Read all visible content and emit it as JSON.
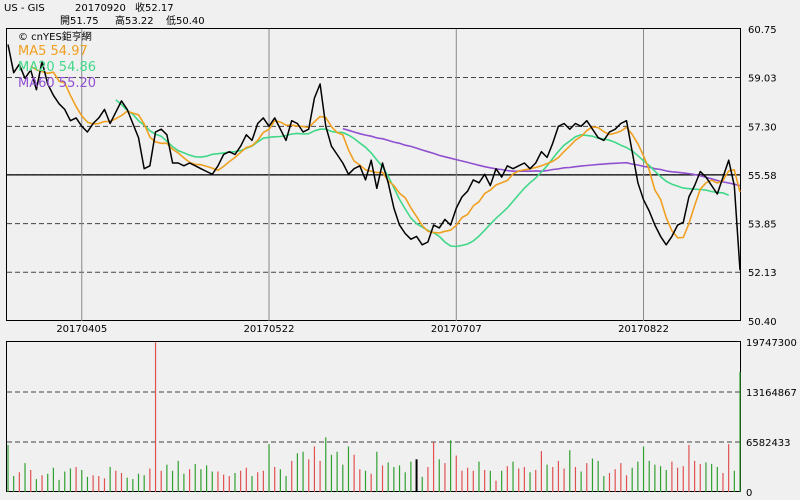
{
  "header": {
    "symbol": "US - GIS",
    "date": "20170920",
    "close_label": "收52.17",
    "open_label": "開51.75",
    "high_label": "高53.22",
    "low_label": "低50.40"
  },
  "watermark": "© cnYES鉅亨網",
  "chart_data": {
    "type": "line",
    "price": {
      "ylim": [
        50.4,
        60.75
      ],
      "yticks": [
        "60.75",
        "59.03",
        "57.30",
        "55.58",
        "53.85",
        "52.13",
        "50.40"
      ],
      "reference_line": 55.58,
      "xticks": [
        {
          "label": "20170405",
          "index": 13
        },
        {
          "label": "20170522",
          "index": 46
        },
        {
          "label": "20170707",
          "index": 79
        },
        {
          "label": "20170822",
          "index": 112
        }
      ],
      "close": [
        60.2,
        59.2,
        59.5,
        59.0,
        59.3,
        58.6,
        59.6,
        58.8,
        58.4,
        58.1,
        57.9,
        57.5,
        57.6,
        57.3,
        57.1,
        57.4,
        57.6,
        57.9,
        57.4,
        57.8,
        58.2,
        57.9,
        57.4,
        56.9,
        55.8,
        55.9,
        57.1,
        57.2,
        57.0,
        56.0,
        56.0,
        55.9,
        56.0,
        55.9,
        55.8,
        55.7,
        55.6,
        55.9,
        56.3,
        56.4,
        56.3,
        56.6,
        57.0,
        56.8,
        57.4,
        57.6,
        57.3,
        57.6,
        57.2,
        56.8,
        57.5,
        57.4,
        57.1,
        57.2,
        58.3,
        58.8,
        57.3,
        56.6,
        56.3,
        56.0,
        55.6,
        55.8,
        55.9,
        55.4,
        56.1,
        55.1,
        56.0,
        55.3,
        54.4,
        53.8,
        53.5,
        53.3,
        53.4,
        53.1,
        53.2,
        53.8,
        53.7,
        54.0,
        53.8,
        54.4,
        54.8,
        55.0,
        55.4,
        55.3,
        55.6,
        55.2,
        55.8,
        55.5,
        55.9,
        55.8,
        55.9,
        56.0,
        55.8,
        56.0,
        56.4,
        56.2,
        56.7,
        57.3,
        57.4,
        57.2,
        57.4,
        57.3,
        57.5,
        57.2,
        56.9,
        56.8,
        57.1,
        57.2,
        57.4,
        57.5,
        56.4,
        55.3,
        54.7,
        54.3,
        53.8,
        53.4,
        53.1,
        53.4,
        53.8,
        53.9,
        54.8,
        55.2,
        55.7,
        55.5,
        55.2,
        54.9,
        55.5,
        56.1,
        55.2,
        52.2
      ],
      "ma": [
        {
          "name": "MA5",
          "value_label": "54.97",
          "color": "#f0a020",
          "series": [
            null,
            null,
            null,
            null,
            59.44,
            59.3,
            59.24,
            59.18,
            59.22,
            58.9,
            58.84,
            58.4,
            58.0,
            57.67,
            57.45,
            57.38,
            57.4,
            57.47,
            57.47,
            57.57,
            57.68,
            57.84,
            57.77,
            57.71,
            57.38,
            56.92,
            56.75,
            56.7,
            56.7,
            56.49,
            56.36,
            56.18,
            56.02,
            55.95,
            55.94,
            55.88,
            55.82,
            55.74,
            55.88,
            56.05,
            56.2,
            56.38,
            56.55,
            56.61,
            56.8,
            57.08,
            57.19,
            57.5,
            57.45,
            57.34,
            57.34,
            57.31,
            57.29,
            57.26,
            57.46,
            57.65,
            57.61,
            57.29,
            57.08,
            57.0,
            56.46,
            56.07,
            55.93,
            55.76,
            55.71,
            55.66,
            55.67,
            55.37,
            55.2,
            54.93,
            54.77,
            54.41,
            54.1,
            53.78,
            53.58,
            53.54,
            53.52,
            53.58,
            53.62,
            53.79,
            54.07,
            54.18,
            54.48,
            54.63,
            54.92,
            55.04,
            55.22,
            55.3,
            55.38,
            55.61,
            55.72,
            55.76,
            55.79,
            55.84,
            55.9,
            55.98,
            56.06,
            56.19,
            56.41,
            56.6,
            56.81,
            56.94,
            57.15,
            57.28,
            57.26,
            57.11,
            57.01,
            57.06,
            57.13,
            57.27,
            57.01,
            56.68,
            56.26,
            55.75,
            55.04,
            54.71,
            54.06,
            53.6,
            53.35,
            53.36,
            53.85,
            54.49,
            55.07,
            55.3,
            55.39,
            55.29,
            55.38,
            55.72,
            55.76,
            54.97
          ]
        },
        {
          "name": "MA20",
          "value_label": "54.86",
          "color": "#40d888",
          "series": [
            null,
            null,
            null,
            null,
            null,
            null,
            null,
            null,
            null,
            null,
            null,
            null,
            null,
            null,
            null,
            null,
            null,
            null,
            null,
            58.24,
            58.07,
            57.87,
            57.73,
            57.5,
            57.34,
            57.14,
            57.02,
            56.95,
            56.77,
            56.58,
            56.44,
            56.36,
            56.28,
            56.22,
            56.21,
            56.24,
            56.31,
            56.33,
            56.36,
            56.39,
            56.4,
            56.44,
            56.52,
            56.6,
            56.75,
            56.88,
            56.91,
            56.93,
            56.94,
            56.97,
            57.03,
            57.05,
            57.03,
            57.04,
            57.14,
            57.2,
            57.2,
            57.12,
            57.09,
            57.08,
            56.99,
            56.87,
            56.71,
            56.56,
            56.36,
            56.11,
            55.87,
            55.53,
            55.12,
            54.71,
            54.37,
            54.05,
            53.85,
            53.73,
            53.61,
            53.53,
            53.4,
            53.2,
            53.06,
            53.04,
            53.08,
            53.13,
            53.24,
            53.41,
            53.62,
            53.83,
            54.04,
            54.22,
            54.41,
            54.64,
            54.88,
            55.11,
            55.3,
            55.47,
            55.68,
            55.9,
            56.16,
            56.41,
            56.63,
            56.78,
            56.93,
            57.0,
            56.98,
            56.95,
            56.88,
            56.85,
            56.81,
            56.73,
            56.63,
            56.55,
            56.43,
            56.26,
            56.08,
            55.91,
            55.71,
            55.52,
            55.35,
            55.25,
            55.18,
            55.11,
            55.09,
            55.07,
            55.06,
            55.04,
            54.99,
            54.96,
            54.94,
            54.86
          ]
        },
        {
          "name": "MA60",
          "value_label": "55.20",
          "color": "#9050d0",
          "series": [
            null,
            null,
            null,
            null,
            null,
            null,
            null,
            null,
            null,
            null,
            null,
            null,
            null,
            null,
            null,
            null,
            null,
            null,
            null,
            null,
            null,
            null,
            null,
            null,
            null,
            null,
            null,
            null,
            null,
            null,
            null,
            null,
            null,
            null,
            null,
            null,
            null,
            null,
            null,
            null,
            null,
            null,
            null,
            null,
            null,
            null,
            null,
            null,
            null,
            null,
            null,
            null,
            null,
            null,
            null,
            null,
            null,
            null,
            null,
            57.22,
            57.16,
            57.1,
            57.04,
            56.99,
            56.95,
            56.89,
            56.86,
            56.8,
            56.74,
            56.7,
            56.63,
            56.59,
            56.53,
            56.46,
            56.4,
            56.34,
            56.27,
            56.22,
            56.17,
            56.12,
            56.07,
            56.02,
            55.97,
            55.92,
            55.87,
            55.83,
            55.79,
            55.77,
            55.73,
            55.71,
            55.71,
            55.71,
            55.71,
            55.72,
            55.71,
            55.73,
            55.77,
            55.79,
            55.83,
            55.84,
            55.87,
            55.89,
            55.91,
            55.93,
            55.95,
            55.96,
            55.98,
            55.99,
            56.0,
            56.01,
            55.96,
            55.93,
            55.88,
            55.85,
            55.8,
            55.77,
            55.72,
            55.69,
            55.67,
            55.65,
            55.62,
            55.59,
            55.55,
            55.49,
            55.44,
            55.38,
            55.33,
            55.29,
            55.25,
            55.2
          ]
        }
      ]
    },
    "volume": {
      "ylim": [
        0,
        19747300
      ],
      "yticks": [
        "19747300",
        "13164867",
        "6582433",
        "0"
      ],
      "values": [
        6200000,
        2100000,
        2600000,
        3800000,
        2900000,
        1700000,
        2200000,
        2400000,
        3200000,
        1600000,
        2700000,
        3100000,
        3300000,
        2900000,
        2000000,
        2200000,
        2100000,
        1800000,
        3300000,
        2800000,
        2500000,
        1900000,
        1700000,
        2400000,
        2200000,
        3100000,
        19700000,
        2800000,
        3600000,
        2800000,
        4100000,
        2400000,
        3000000,
        3700000,
        3000000,
        3500000,
        2700000,
        2700000,
        2300000,
        2100000,
        2500000,
        2800000,
        3200000,
        2100000,
        2600000,
        2800000,
        6300000,
        3300000,
        3000000,
        2100000,
        4100000,
        5100000,
        5300000,
        4300000,
        6000000,
        4100000,
        7200000,
        4900000,
        5300000,
        3600000,
        6000000,
        4900000,
        3000000,
        2800000,
        2400000,
        5300000,
        3500000,
        3900000,
        3300000,
        3500000,
        2600000,
        4000000,
        4300000,
        2000000,
        3300000,
        6600000,
        4300000,
        3800000,
        6800000,
        4800000,
        2800000,
        3200000,
        2800000,
        4000000,
        2900000,
        2800000,
        1500000,
        2800000,
        3400000,
        4000000,
        3100000,
        3300000,
        2600000,
        2900000,
        5400000,
        3600000,
        3300000,
        4100000,
        3100000,
        5500000,
        3300000,
        2700000,
        3800000,
        4400000,
        4100000,
        2100000,
        2500000,
        3000000,
        3800000,
        2200000,
        3200000,
        4000000,
        6000000,
        4100000,
        3600000,
        3400000,
        2900000,
        4000000,
        3200000,
        3400000,
        6200000,
        4100000,
        3700000,
        3900000,
        3700000,
        3300000,
        2500000,
        6300000,
        2800000,
        15800000
      ],
      "up": [
        false,
        false,
        true,
        false,
        true,
        false,
        true,
        false,
        false,
        false,
        false,
        false,
        true,
        false,
        false,
        true,
        true,
        true,
        false,
        true,
        true,
        false,
        false,
        false,
        false,
        true,
        true,
        true,
        false,
        false,
        false,
        false,
        true,
        false,
        false,
        false,
        false,
        true,
        true,
        true,
        false,
        true,
        true,
        false,
        true,
        true,
        false,
        true,
        false,
        false,
        true,
        false,
        false,
        true,
        true,
        true,
        false,
        false,
        false,
        false,
        false,
        true,
        true,
        false,
        true,
        false,
        true,
        false,
        false,
        false,
        false,
        false,
        true,
        false,
        true,
        true,
        false,
        true,
        false,
        true,
        true,
        true,
        true,
        false,
        true,
        false,
        true,
        false,
        true,
        false,
        true,
        true,
        false,
        true,
        true,
        false,
        true,
        true,
        true,
        false,
        true,
        false,
        true,
        false,
        false,
        false,
        true,
        true,
        true,
        true,
        false,
        false,
        false,
        false,
        false,
        false,
        false,
        true,
        true,
        true,
        true,
        true,
        true,
        false,
        false,
        false,
        true,
        true,
        false,
        false
      ],
      "highlight_index": 72
    }
  }
}
